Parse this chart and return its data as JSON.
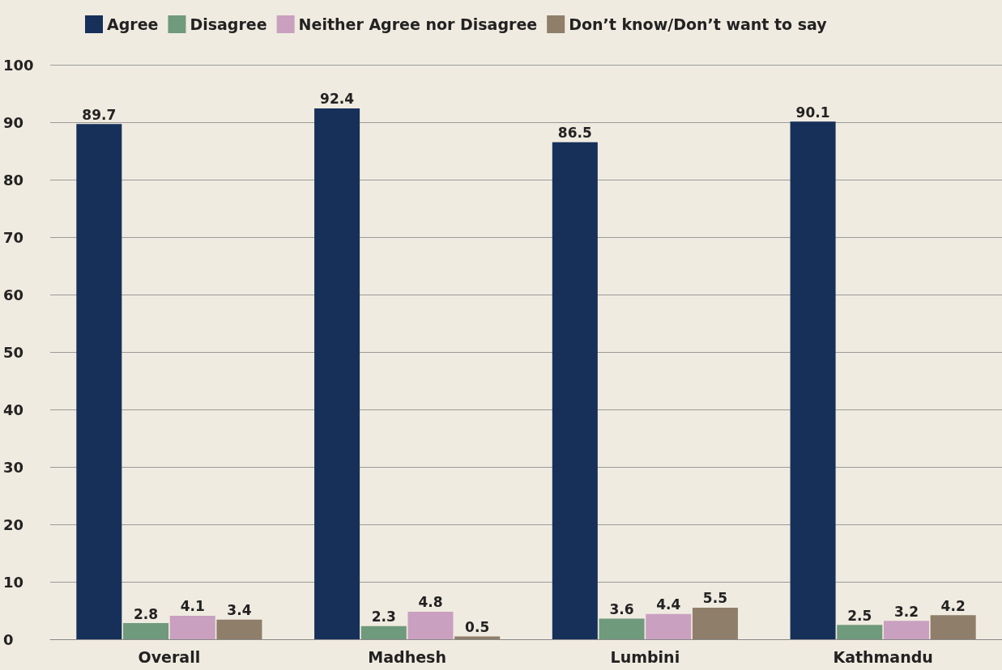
{
  "chart_data": {
    "type": "bar",
    "categories": [
      "Overall",
      "Madhesh",
      "Lumbini",
      "Kathmandu"
    ],
    "series": [
      {
        "name": "Agree",
        "color": "#16305a",
        "values": [
          89.7,
          92.4,
          86.5,
          90.1
        ]
      },
      {
        "name": "Disagree",
        "color": "#6f9a7c",
        "values": [
          2.8,
          2.3,
          3.6,
          2.5
        ]
      },
      {
        "name": "Neither Agree nor Disagree",
        "color": "#c9a0c0",
        "values": [
          4.1,
          4.8,
          4.4,
          3.2
        ]
      },
      {
        "name": "Don’t know/Don’t want to say",
        "color": "#8f7e6a",
        "values": [
          3.4,
          0.5,
          5.5,
          4.2
        ]
      }
    ],
    "ylim": [
      0,
      100
    ],
    "yticks": [
      0,
      10,
      20,
      30,
      40,
      50,
      60,
      70,
      80,
      90,
      100
    ],
    "grid": "y",
    "legend": "top left",
    "data_labels": true
  }
}
